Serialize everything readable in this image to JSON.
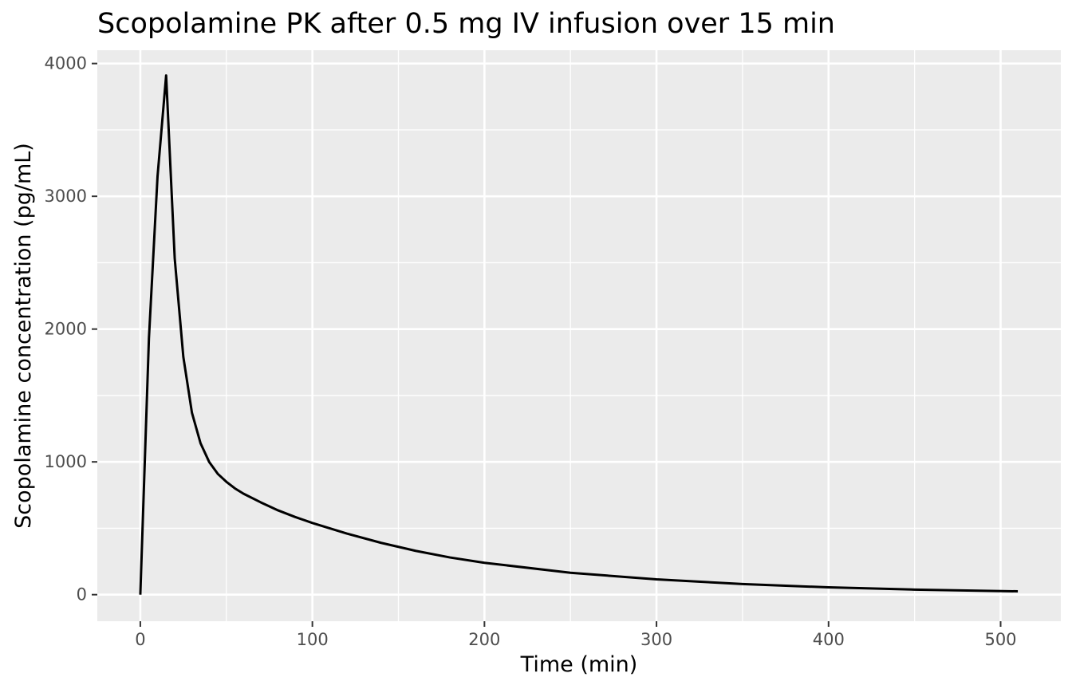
{
  "chart_data": {
    "type": "line",
    "title": "Scopolamine PK after 0.5 mg IV infusion over 15 min",
    "xlabel": "Time (min)",
    "ylabel": "Scopolamine concentration (pg/mL)",
    "xlim": [
      -25,
      535
    ],
    "ylim": [
      -200,
      4100
    ],
    "grid": true,
    "legend": "none",
    "x_ticks": [
      0,
      100,
      200,
      300,
      400,
      500
    ],
    "x_tick_labels": [
      "0",
      "100",
      "200",
      "300",
      "400",
      "500"
    ],
    "y_ticks": [
      0,
      1000,
      2000,
      3000,
      4000
    ],
    "y_tick_labels": [
      "0",
      "1000",
      "2000",
      "3000",
      "4000"
    ],
    "colors": {
      "panel": "#ebebeb",
      "grid": "#ffffff",
      "line": "#000000",
      "tick_text": "#4d4d4d"
    },
    "series": [
      {
        "x": [
          0,
          5,
          10,
          15,
          20,
          25,
          30,
          35,
          40,
          45,
          50,
          55,
          60,
          70,
          80,
          90,
          100,
          120,
          140,
          160,
          180,
          200,
          250,
          300,
          350,
          400,
          450,
          510
        ],
        "y": [
          0,
          1930,
          3150,
          3910,
          2530,
          1790,
          1370,
          1140,
          1000,
          910,
          850,
          800,
          760,
          695,
          635,
          585,
          540,
          460,
          390,
          330,
          280,
          240,
          165,
          115,
          80,
          55,
          38,
          25
        ]
      }
    ]
  }
}
